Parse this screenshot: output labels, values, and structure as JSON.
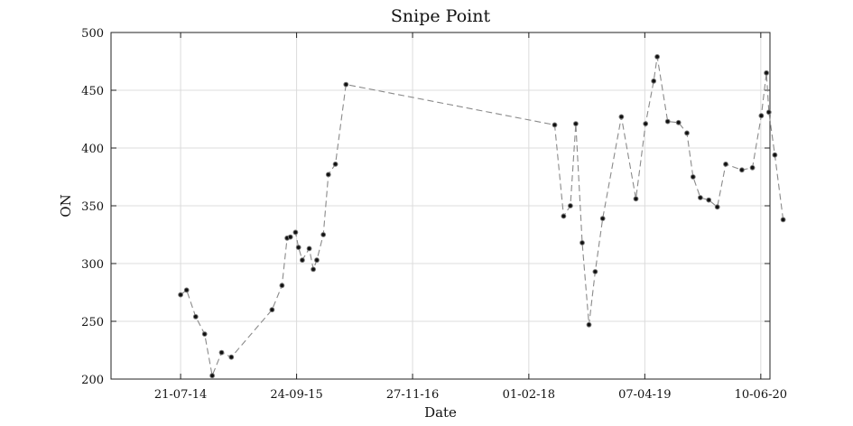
{
  "chart_data": {
    "type": "line",
    "title": "Snipe Point",
    "xlabel": "Date",
    "ylabel": "ON",
    "x_ticks": [
      "21-07-14",
      "24-09-15",
      "27-11-16",
      "01-02-18",
      "07-04-19",
      "10-06-20"
    ],
    "y_ticks": [
      200,
      250,
      300,
      350,
      400,
      450,
      500
    ],
    "xlim": [
      "2013-11-05",
      "2020-07-14"
    ],
    "ylim": [
      200,
      500
    ],
    "grid": true,
    "line_style": "dashed",
    "colors": {
      "line": "#8a8a8a",
      "marker": "#111111"
    },
    "series": [
      {
        "x": [
          "2014-07-21",
          "2014-08-12",
          "2014-09-15",
          "2014-10-18",
          "2014-11-15",
          "2014-12-20",
          "2015-01-25",
          "2015-06-25",
          "2015-08-01",
          "2015-08-20",
          "2015-09-01",
          "2015-09-20",
          "2015-10-01",
          "2015-10-15",
          "2015-11-10",
          "2015-11-25",
          "2015-12-08",
          "2016-01-01",
          "2016-01-20",
          "2016-02-15",
          "2016-03-25",
          "2018-05-08",
          "2018-06-10",
          "2018-07-05",
          "2018-07-25",
          "2018-08-18",
          "2018-09-12",
          "2018-10-05",
          "2018-11-02",
          "2019-01-10",
          "2019-03-05",
          "2019-04-10",
          "2019-05-10",
          "2019-05-23",
          "2019-07-01",
          "2019-08-10",
          "2019-09-10",
          "2019-10-03",
          "2019-10-30",
          "2019-11-30",
          "2020-01-01",
          "2020-02-01",
          "2020-04-01",
          "2020-05-10",
          "2020-06-12",
          "2020-07-01",
          "2020-07-10",
          "2020-08-01",
          "2020-09-01"
        ],
        "y": [
          273,
          277,
          254,
          239,
          203,
          223,
          219,
          260,
          281,
          322,
          323,
          327,
          314,
          303,
          313,
          295,
          303,
          325,
          377,
          386,
          455,
          420,
          341,
          350,
          421,
          318,
          247,
          293,
          339,
          427,
          356,
          421,
          458,
          479,
          423,
          422,
          413,
          375,
          357,
          355,
          349,
          386,
          381,
          383,
          428,
          465,
          431,
          394,
          338
        ]
      }
    ]
  }
}
